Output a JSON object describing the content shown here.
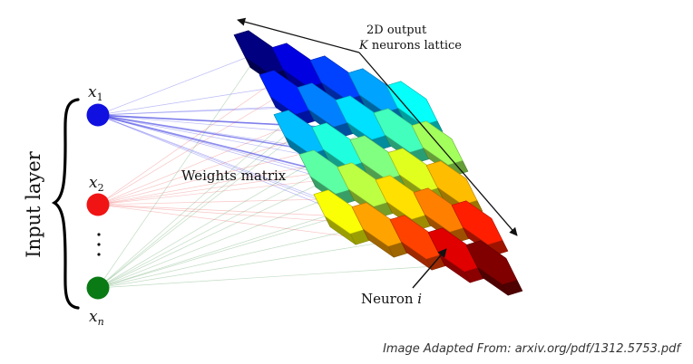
{
  "input_layer": {
    "label": "Input layer",
    "nodes": [
      {
        "label": "x",
        "subscript": "1",
        "color": "#1010e0"
      },
      {
        "label": "x",
        "subscript": "2",
        "color": "#f01414"
      },
      {
        "label": "x",
        "subscript": "n",
        "color": "#0a7a14"
      }
    ],
    "ellipsis": "·\n·\n·"
  },
  "weights_label": "Weights matrix",
  "output": {
    "title_line1": "2D output",
    "title_line2_var": "K",
    "title_line2_rest": " neurons lattice"
  },
  "neuron_label": {
    "text": "Neuron ",
    "var": "i"
  },
  "credit": "Image Adapted From: arxiv.org/pdf/1312.5753.pdf",
  "lattice": {
    "rows": 5,
    "cols": 5,
    "colormap": "jet"
  }
}
